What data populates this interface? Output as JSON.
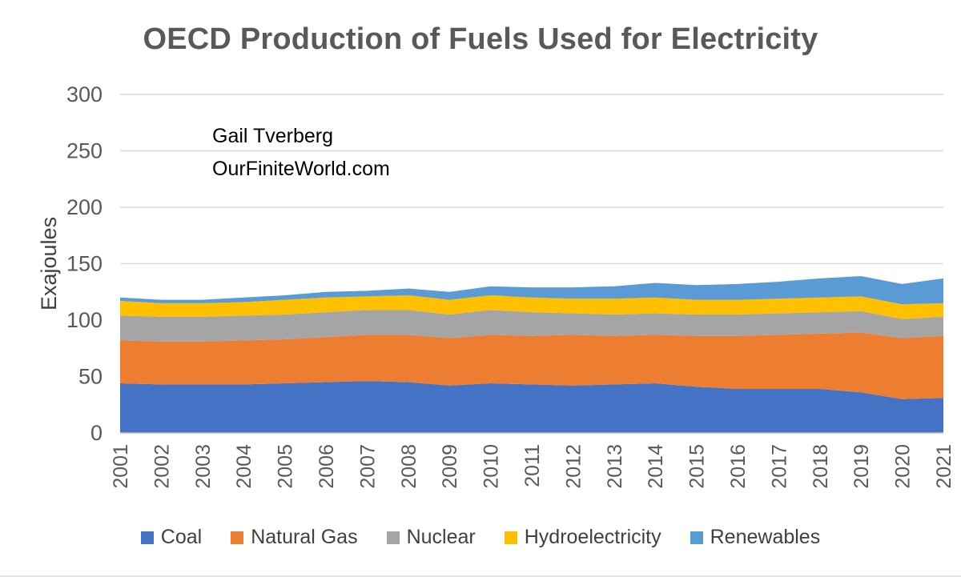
{
  "page": {
    "title": "OECD Production of Fuels Used for Electricity",
    "annotation_line1": "Gail Tverberg",
    "annotation_line2": "OurFiniteWorld.com"
  },
  "chart_data": {
    "type": "area",
    "stacked": true,
    "title": "OECD Production of Fuels Used for Electricity",
    "xlabel": "",
    "ylabel": "Exajoules",
    "ylim": [
      0,
      300
    ],
    "ytick_step": 50,
    "grid": true,
    "legend_position": "bottom",
    "annotations": [
      "Gail Tverberg",
      "OurFiniteWorld.com"
    ],
    "x": [
      2001,
      2002,
      2003,
      2004,
      2005,
      2006,
      2007,
      2008,
      2009,
      2010,
      2011,
      2012,
      2013,
      2014,
      2015,
      2016,
      2017,
      2018,
      2019,
      2020,
      2021
    ],
    "series": [
      {
        "name": "Coal",
        "color": "#4472C4",
        "values": [
          44,
          43,
          43,
          43,
          44,
          45,
          46,
          45,
          42,
          44,
          43,
          42,
          43,
          44,
          41,
          39,
          39,
          39,
          36,
          30,
          31
        ]
      },
      {
        "name": "Natural Gas",
        "color": "#ED7D31",
        "values": [
          38,
          38,
          38,
          39,
          39,
          40,
          41,
          42,
          42,
          43,
          43,
          45,
          43,
          43,
          45,
          47,
          48,
          49,
          53,
          54,
          55
        ]
      },
      {
        "name": "Nuclear",
        "color": "#A5A5A5",
        "values": [
          22,
          22,
          22,
          22,
          22,
          22,
          22,
          22,
          21,
          22,
          21,
          19,
          19,
          19,
          19,
          19,
          19,
          19,
          19,
          17,
          17
        ]
      },
      {
        "name": "Hydroelectricity",
        "color": "#FFC000",
        "values": [
          13,
          12,
          12,
          12,
          13,
          13,
          12,
          13,
          13,
          13,
          13,
          13,
          14,
          14,
          13,
          13,
          13,
          13,
          13,
          13,
          12
        ]
      },
      {
        "name": "Renewables",
        "color": "#5B9BD5",
        "values": [
          3,
          3,
          3,
          4,
          4,
          5,
          5,
          6,
          7,
          8,
          9,
          10,
          11,
          13,
          13,
          14,
          15,
          17,
          18,
          18,
          22
        ]
      }
    ]
  },
  "colors": {
    "title_text": "#595959",
    "axis_text": "#595959",
    "gridline": "#d9d9d9",
    "axis_line": "#bfbfbf",
    "annotation_text": "#000000"
  }
}
